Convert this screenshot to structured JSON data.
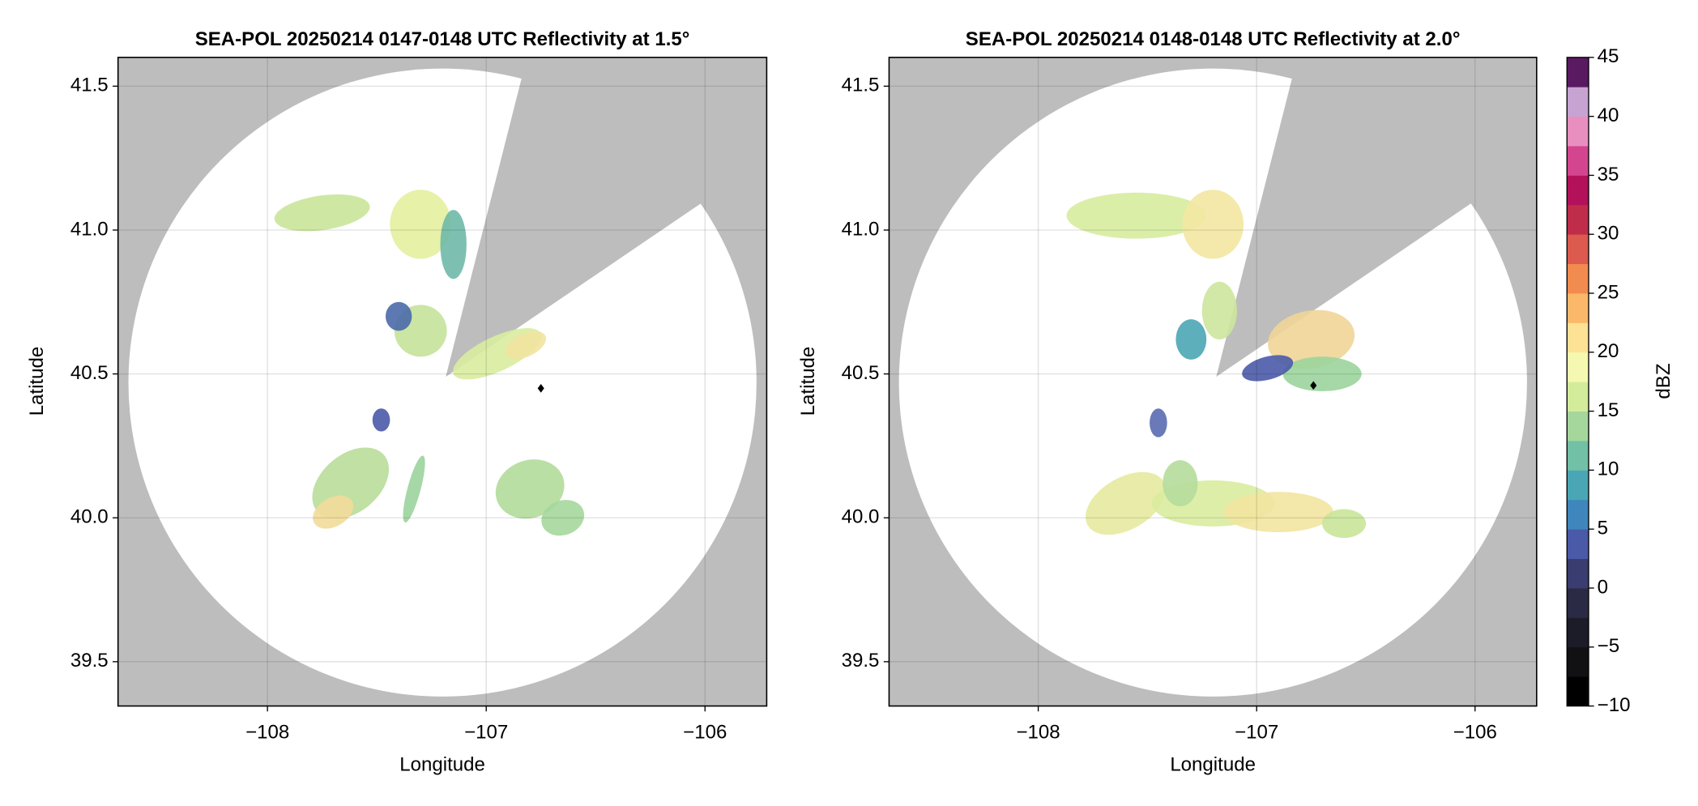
{
  "chart_data": [
    {
      "type": "radar-ppi",
      "title": "SEA-POL 20250214 0147-0148 UTC Reflectivity at 1.5°",
      "x_label": "Longitude",
      "y_label": "Latitude",
      "xlim": [
        -108.683,
        -105.718
      ],
      "ylim": [
        39.346,
        41.6
      ],
      "xticks": [
        {
          "value": -108,
          "label": "−108"
        },
        {
          "value": -107,
          "label": "−107"
        },
        {
          "value": -106,
          "label": "−106"
        }
      ],
      "yticks": [
        39.5,
        {
          "value": 40,
          "label": "40.0"
        },
        40.5,
        {
          "value": 41,
          "label": "41.0"
        },
        41.5
      ],
      "grid": true,
      "marker": {
        "lon": -106.75,
        "lat": 40.45,
        "color": "#000000"
      }
    },
    {
      "type": "radar-ppi",
      "title": "SEA-POL 20250214 0148-0148 UTC Reflectivity at 2.0°",
      "x_label": "Longitude",
      "y_label": "Latitude",
      "xlim": [
        -108.683,
        -105.718
      ],
      "ylim": [
        39.346,
        41.6
      ],
      "xticks": [
        {
          "value": -108,
          "label": "−108"
        },
        {
          "value": -107,
          "label": "−107"
        },
        {
          "value": -106,
          "label": "−106"
        }
      ],
      "yticks": [
        39.5,
        {
          "value": 40,
          "label": "40.0"
        },
        40.5,
        {
          "value": 41,
          "label": "41.0"
        },
        41.5
      ],
      "grid": true,
      "marker": {
        "lon": -106.74,
        "lat": 40.46,
        "color": "#000000"
      },
      "colorbar": {
        "label": "dBZ",
        "lim": [
          -10,
          45
        ],
        "ticks": [
          {
            "value": -10,
            "label": "−10"
          },
          {
            "value": -5,
            "label": "−5"
          },
          0,
          5,
          10,
          15,
          20,
          25,
          30,
          35,
          40,
          45
        ],
        "colors": [
          "#000000",
          "#111114",
          "#1c1c28",
          "#2a2a45",
          "#3a3d6f",
          "#4a5aa8",
          "#3f86bc",
          "#4aa6b4",
          "#72c0a5",
          "#a5d79c",
          "#d3ec9c",
          "#f5f8b0",
          "#fde295",
          "#fbb86a",
          "#f28b50",
          "#dd5a4e",
          "#c02d4b",
          "#b3125b",
          "#d4458f",
          "#e88fc0",
          "#c7a3d2",
          "#5a1a62"
        ]
      }
    }
  ]
}
